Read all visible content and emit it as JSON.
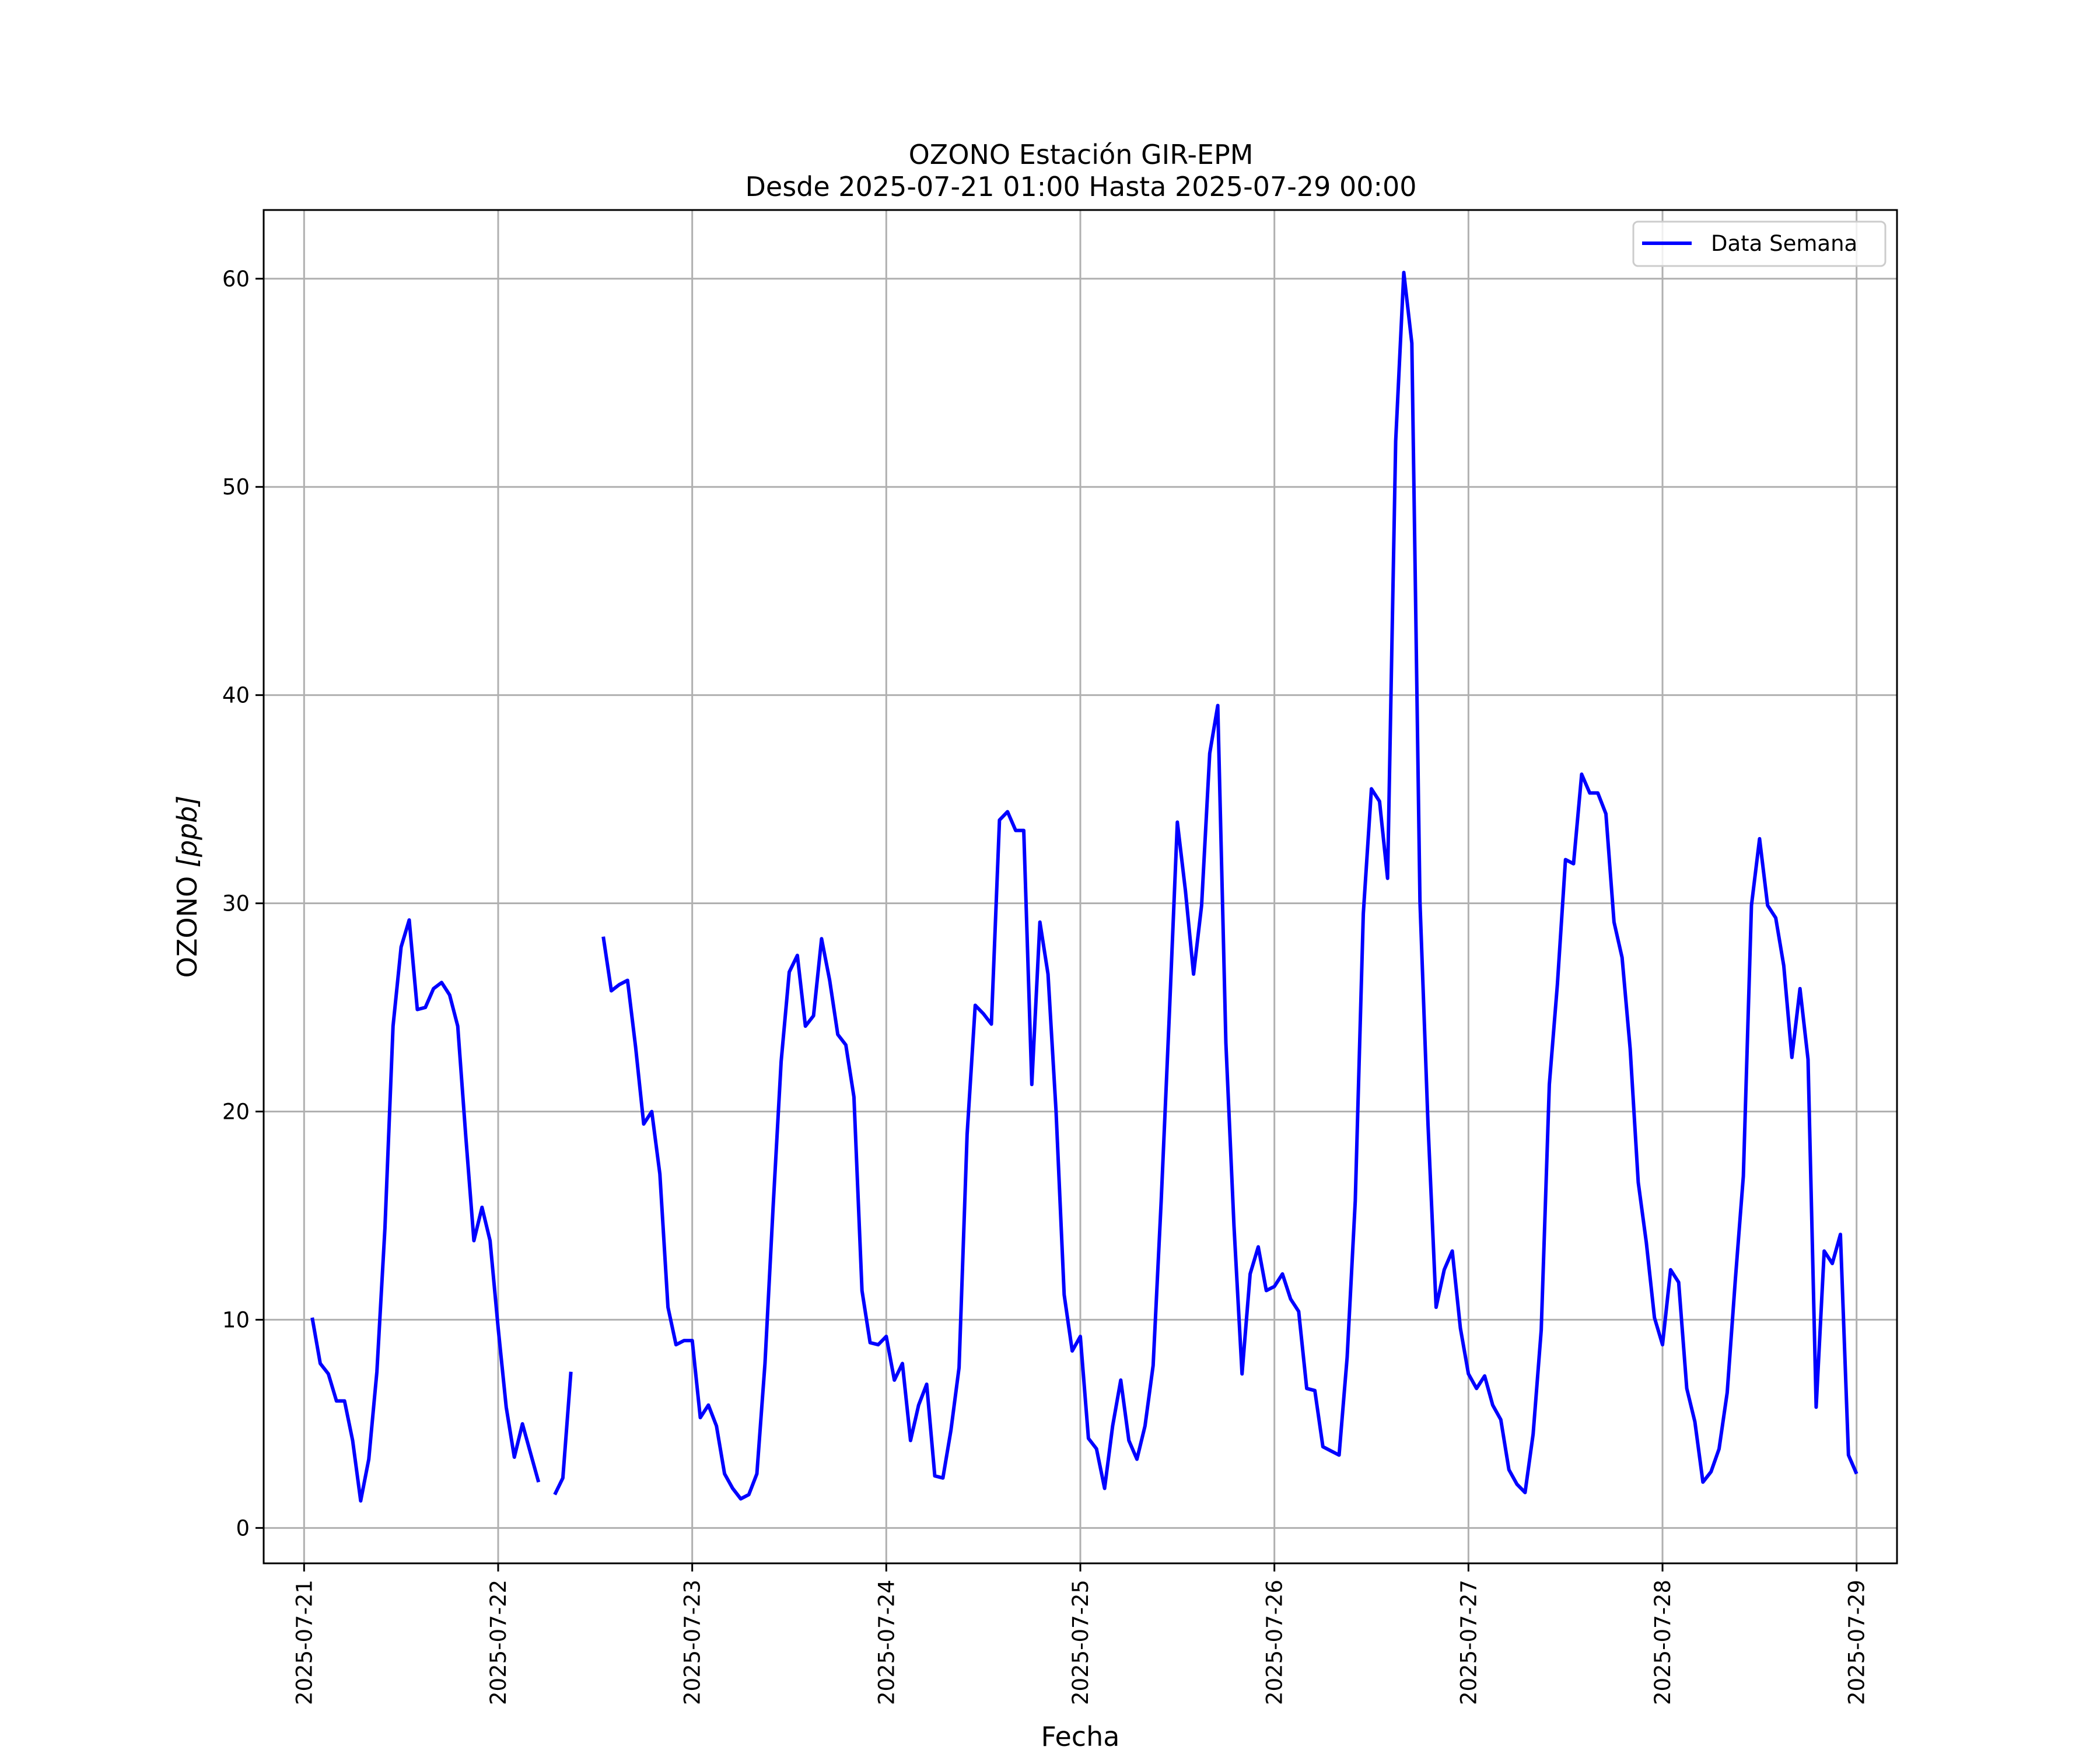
{
  "chart_data": {
    "type": "line",
    "title": "OZONO Estación GIR-EPM",
    "subtitle": "Desde 2025-07-21 01:00 Hasta 2025-07-29 00:00",
    "xlabel": "Fecha",
    "ylabel_text": "OZONO",
    "ylabel_unit": "[ppb]",
    "xlim": [
      "2025-07-20 19:00",
      "2025-07-29 05:00"
    ],
    "ylim": [
      -1.7,
      63.3
    ],
    "x_ticks": [
      "2025-07-21",
      "2025-07-22",
      "2025-07-23",
      "2025-07-24",
      "2025-07-25",
      "2025-07-26",
      "2025-07-27",
      "2025-07-28",
      "2025-07-29"
    ],
    "y_ticks": [
      0,
      10,
      20,
      30,
      40,
      50,
      60
    ],
    "grid": true,
    "legend": {
      "position": "top-right"
    },
    "series": [
      {
        "name": "Data Semana",
        "color": "#0000ff",
        "points": [
          [
            "2025-07-21 01:00",
            10.1
          ],
          [
            "2025-07-21 02:00",
            7.9
          ],
          [
            "2025-07-21 03:00",
            7.4
          ],
          [
            "2025-07-21 04:00",
            6.1
          ],
          [
            "2025-07-21 05:00",
            6.1
          ],
          [
            "2025-07-21 06:00",
            4.2
          ],
          [
            "2025-07-21 07:00",
            1.3
          ],
          [
            "2025-07-21 08:00",
            3.3
          ],
          [
            "2025-07-21 09:00",
            7.5
          ],
          [
            "2025-07-21 10:00",
            14.4
          ],
          [
            "2025-07-21 11:00",
            24.1
          ],
          [
            "2025-07-21 12:00",
            27.9
          ],
          [
            "2025-07-21 13:00",
            29.2
          ],
          [
            "2025-07-21 14:00",
            24.9
          ],
          [
            "2025-07-21 15:00",
            25.0
          ],
          [
            "2025-07-21 16:00",
            25.9
          ],
          [
            "2025-07-21 17:00",
            26.2
          ],
          [
            "2025-07-21 18:00",
            25.6
          ],
          [
            "2025-07-21 19:00",
            24.1
          ],
          [
            "2025-07-21 20:00",
            18.8
          ],
          [
            "2025-07-21 21:00",
            13.8
          ],
          [
            "2025-07-21 22:00",
            15.4
          ],
          [
            "2025-07-21 23:00",
            13.8
          ],
          [
            "2025-07-22 00:00",
            9.6
          ],
          [
            "2025-07-22 01:00",
            5.8
          ],
          [
            "2025-07-22 02:00",
            3.4
          ],
          [
            "2025-07-22 03:00",
            5.0
          ],
          [
            "2025-07-22 04:00",
            3.6
          ],
          [
            "2025-07-22 05:00",
            2.2
          ],
          null,
          [
            "2025-07-22 07:00",
            1.6
          ],
          [
            "2025-07-22 08:00",
            2.4
          ],
          [
            "2025-07-22 09:00",
            7.5
          ],
          null,
          [
            "2025-07-22 13:00",
            28.4
          ],
          [
            "2025-07-22 14:00",
            25.8
          ],
          [
            "2025-07-22 15:00",
            26.1
          ],
          [
            "2025-07-22 16:00",
            26.3
          ],
          [
            "2025-07-22 17:00",
            23.1
          ],
          [
            "2025-07-22 18:00",
            19.4
          ],
          [
            "2025-07-22 19:00",
            20.0
          ],
          [
            "2025-07-22 20:00",
            17.0
          ],
          [
            "2025-07-22 21:00",
            10.6
          ],
          [
            "2025-07-22 22:00",
            8.8
          ],
          [
            "2025-07-22 23:00",
            9.0
          ],
          [
            "2025-07-23 00:00",
            9.0
          ],
          [
            "2025-07-23 01:00",
            5.3
          ],
          [
            "2025-07-23 02:00",
            5.9
          ],
          [
            "2025-07-23 03:00",
            4.9
          ],
          [
            "2025-07-23 04:00",
            2.6
          ],
          [
            "2025-07-23 05:00",
            1.9
          ],
          [
            "2025-07-23 06:00",
            1.4
          ],
          [
            "2025-07-23 07:00",
            1.6
          ],
          [
            "2025-07-23 08:00",
            2.6
          ],
          [
            "2025-07-23 09:00",
            7.9
          ],
          [
            "2025-07-23 10:00",
            15.4
          ],
          [
            "2025-07-23 11:00",
            22.4
          ],
          [
            "2025-07-23 12:00",
            26.7
          ],
          [
            "2025-07-23 13:00",
            27.5
          ],
          [
            "2025-07-23 14:00",
            24.1
          ],
          [
            "2025-07-23 15:00",
            24.6
          ],
          [
            "2025-07-23 16:00",
            28.3
          ],
          [
            "2025-07-23 17:00",
            26.3
          ],
          [
            "2025-07-23 18:00",
            23.7
          ],
          [
            "2025-07-23 19:00",
            23.2
          ],
          [
            "2025-07-23 20:00",
            20.7
          ],
          [
            "2025-07-23 21:00",
            11.4
          ],
          [
            "2025-07-23 22:00",
            8.9
          ],
          [
            "2025-07-23 23:00",
            8.8
          ],
          [
            "2025-07-24 00:00",
            9.2
          ],
          [
            "2025-07-24 01:00",
            7.1
          ],
          [
            "2025-07-24 02:00",
            7.9
          ],
          [
            "2025-07-24 03:00",
            4.2
          ],
          [
            "2025-07-24 04:00",
            5.9
          ],
          [
            "2025-07-24 05:00",
            6.9
          ],
          [
            "2025-07-24 06:00",
            2.5
          ],
          [
            "2025-07-24 07:00",
            2.4
          ],
          [
            "2025-07-24 08:00",
            4.7
          ],
          [
            "2025-07-24 09:00",
            7.7
          ],
          [
            "2025-07-24 10:00",
            18.9
          ],
          [
            "2025-07-24 11:00",
            25.1
          ],
          [
            "2025-07-24 12:00",
            24.7
          ],
          [
            "2025-07-24 13:00",
            24.2
          ],
          [
            "2025-07-24 14:00",
            34.0
          ],
          [
            "2025-07-24 15:00",
            34.4
          ],
          [
            "2025-07-24 16:00",
            33.5
          ],
          [
            "2025-07-24 17:00",
            33.5
          ],
          [
            "2025-07-24 18:00",
            21.3
          ],
          [
            "2025-07-24 19:00",
            29.1
          ],
          [
            "2025-07-24 20:00",
            26.6
          ],
          [
            "2025-07-24 21:00",
            20.0
          ],
          [
            "2025-07-24 22:00",
            11.2
          ],
          [
            "2025-07-24 23:00",
            8.5
          ],
          [
            "2025-07-25 00:00",
            9.2
          ],
          [
            "2025-07-25 01:00",
            4.3
          ],
          [
            "2025-07-25 02:00",
            3.8
          ],
          [
            "2025-07-25 03:00",
            1.9
          ],
          [
            "2025-07-25 04:00",
            4.9
          ],
          [
            "2025-07-25 05:00",
            7.1
          ],
          [
            "2025-07-25 06:00",
            4.2
          ],
          [
            "2025-07-25 07:00",
            3.3
          ],
          [
            "2025-07-25 08:00",
            4.9
          ],
          [
            "2025-07-25 09:00",
            7.8
          ],
          [
            "2025-07-25 10:00",
            15.7
          ],
          [
            "2025-07-25 11:00",
            24.6
          ],
          [
            "2025-07-25 12:00",
            33.9
          ],
          [
            "2025-07-25 13:00",
            30.6
          ],
          [
            "2025-07-25 14:00",
            26.6
          ],
          [
            "2025-07-25 15:00",
            29.9
          ],
          [
            "2025-07-25 16:00",
            37.2
          ],
          [
            "2025-07-25 17:00",
            39.5
          ],
          [
            "2025-07-25 18:00",
            23.3
          ],
          [
            "2025-07-25 19:00",
            14.5
          ],
          [
            "2025-07-25 20:00",
            7.4
          ],
          [
            "2025-07-25 21:00",
            12.2
          ],
          [
            "2025-07-25 22:00",
            13.5
          ],
          [
            "2025-07-25 23:00",
            11.4
          ],
          [
            "2025-07-26 00:00",
            11.6
          ],
          [
            "2025-07-26 01:00",
            12.2
          ],
          [
            "2025-07-26 02:00",
            11.0
          ],
          [
            "2025-07-26 03:00",
            10.4
          ],
          [
            "2025-07-26 04:00",
            6.7
          ],
          [
            "2025-07-26 05:00",
            6.6
          ],
          [
            "2025-07-26 06:00",
            3.9
          ],
          [
            "2025-07-26 07:00",
            3.7
          ],
          [
            "2025-07-26 08:00",
            3.5
          ],
          [
            "2025-07-26 09:00",
            8.2
          ],
          [
            "2025-07-26 10:00",
            15.7
          ],
          [
            "2025-07-26 11:00",
            29.5
          ],
          [
            "2025-07-26 12:00",
            35.5
          ],
          [
            "2025-07-26 13:00",
            34.9
          ],
          [
            "2025-07-26 14:00",
            31.2
          ],
          [
            "2025-07-26 15:00",
            52.2
          ],
          [
            "2025-07-26 16:00",
            60.3
          ],
          [
            "2025-07-26 17:00",
            56.9
          ],
          [
            "2025-07-26 18:00",
            30.1
          ],
          [
            "2025-07-26 19:00",
            19.4
          ],
          [
            "2025-07-26 20:00",
            10.6
          ],
          [
            "2025-07-26 21:00",
            12.4
          ],
          [
            "2025-07-26 22:00",
            13.3
          ],
          [
            "2025-07-26 23:00",
            9.6
          ],
          [
            "2025-07-27 00:00",
            7.4
          ],
          [
            "2025-07-27 01:00",
            6.7
          ],
          [
            "2025-07-27 02:00",
            7.3
          ],
          [
            "2025-07-27 03:00",
            5.9
          ],
          [
            "2025-07-27 04:00",
            5.2
          ],
          [
            "2025-07-27 05:00",
            2.8
          ],
          [
            "2025-07-27 06:00",
            2.1
          ],
          [
            "2025-07-27 07:00",
            1.7
          ],
          [
            "2025-07-27 08:00",
            4.5
          ],
          [
            "2025-07-27 09:00",
            9.5
          ],
          [
            "2025-07-27 10:00",
            21.3
          ],
          [
            "2025-07-27 11:00",
            26.1
          ],
          [
            "2025-07-27 12:00",
            32.1
          ],
          [
            "2025-07-27 13:00",
            31.9
          ],
          [
            "2025-07-27 14:00",
            36.2
          ],
          [
            "2025-07-27 15:00",
            35.3
          ],
          [
            "2025-07-27 16:00",
            35.3
          ],
          [
            "2025-07-27 17:00",
            34.3
          ],
          [
            "2025-07-27 18:00",
            29.1
          ],
          [
            "2025-07-27 19:00",
            27.4
          ],
          [
            "2025-07-27 20:00",
            23.0
          ],
          [
            "2025-07-27 21:00",
            16.6
          ],
          [
            "2025-07-27 22:00",
            13.7
          ],
          [
            "2025-07-27 23:00",
            10.1
          ],
          [
            "2025-07-28 00:00",
            8.8
          ],
          [
            "2025-07-28 01:00",
            12.4
          ],
          [
            "2025-07-28 02:00",
            11.8
          ],
          [
            "2025-07-28 03:00",
            6.7
          ],
          [
            "2025-07-28 04:00",
            5.1
          ],
          [
            "2025-07-28 05:00",
            2.2
          ],
          [
            "2025-07-28 06:00",
            2.7
          ],
          [
            "2025-07-28 07:00",
            3.8
          ],
          [
            "2025-07-28 08:00",
            6.5
          ],
          [
            "2025-07-28 09:00",
            11.9
          ],
          [
            "2025-07-28 10:00",
            16.9
          ],
          [
            "2025-07-28 11:00",
            29.9
          ],
          [
            "2025-07-28 12:00",
            33.1
          ],
          [
            "2025-07-28 13:00",
            29.9
          ],
          [
            "2025-07-28 14:00",
            29.3
          ],
          [
            "2025-07-28 15:00",
            27.0
          ],
          [
            "2025-07-28 16:00",
            22.6
          ],
          [
            "2025-07-28 17:00",
            25.9
          ],
          [
            "2025-07-28 18:00",
            22.5
          ],
          [
            "2025-07-28 19:00",
            5.8
          ],
          [
            "2025-07-28 20:00",
            13.3
          ],
          [
            "2025-07-28 21:00",
            12.7
          ],
          [
            "2025-07-28 22:00",
            14.1
          ],
          [
            "2025-07-28 23:00",
            3.5
          ],
          [
            "2025-07-29 00:00",
            2.6
          ]
        ]
      }
    ]
  }
}
